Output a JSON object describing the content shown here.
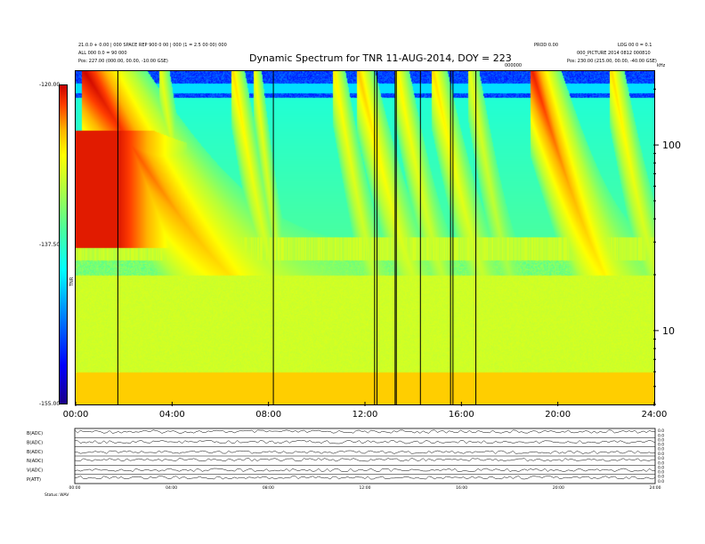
{
  "header": {
    "title": "Dynamic Spectrum for TNR 11-AUG-2014, DOY = 223",
    "left_line1": "21.0.0 + 0.00 | 000 SPACE REP 900 0 00 | 000 (1 = 2.5 00 00) 000",
    "left_line2": "ALL 000 0.0 = 90 000",
    "left_pos_label": "Pos:",
    "left_pos_value": "227.00 (000.00, 00.00, -10.00 GSE)",
    "right_line1a": "PROD 0.00",
    "right_line1b": "LOG 00 0 = 0.1",
    "right_line2": "000_PICTURE 2014 0812 000810",
    "right_pos_label": "Pos:",
    "right_pos_value": "230.00 (215.00, 00.00, -40.00 GSE)",
    "center_small": "000000",
    "right_small": "kHz"
  },
  "colorbar": {
    "top_label": "-120.00",
    "mid_label": "-137.50",
    "bottom_label": "-155.00",
    "side_label": "TNR"
  },
  "chart_data": {
    "type": "heatmap",
    "title": "Dynamic Spectrum for TNR 11-AUG-2014, DOY = 223",
    "xlabel": "",
    "ylabel": "kHz",
    "x_tick_labels": [
      "00:00",
      "04:00",
      "08:00",
      "12:00",
      "16:00",
      "20:00",
      "24:00"
    ],
    "x_range_hours": [
      0,
      24
    ],
    "y_scale": "log",
    "y_range_khz": [
      4,
      250
    ],
    "y_tick_labels": [
      "10",
      "100"
    ],
    "y_ticks_khz": [
      10,
      100
    ],
    "colorbar_range_db": [
      -155.0,
      -120.0
    ],
    "colorbar_ticks_db": [
      -155.0,
      -137.5,
      -120.0
    ],
    "colormap": [
      "#1a0088",
      "#0000ff",
      "#0096ff",
      "#00ffff",
      "#4cff9a",
      "#b4ff3c",
      "#ffff00",
      "#ffb400",
      "#ff3c00",
      "#c80000"
    ],
    "data_gap_lines_hours": [
      1.75,
      8.2,
      12.4,
      12.5,
      13.25,
      13.3,
      14.3,
      15.55,
      15.65,
      16.6
    ],
    "type_iii_bursts": [
      {
        "start_h": 0.3,
        "intensity": 1.0,
        "decay": 3.2
      },
      {
        "start_h": 3.5,
        "intensity": 0.35,
        "decay": 0.8
      },
      {
        "start_h": 6.5,
        "intensity": 0.5,
        "decay": 0.9
      },
      {
        "start_h": 7.4,
        "intensity": 0.4,
        "decay": 0.6
      },
      {
        "start_h": 10.7,
        "intensity": 0.45,
        "decay": 0.9
      },
      {
        "start_h": 11.7,
        "intensity": 0.55,
        "decay": 1.2
      },
      {
        "start_h": 13.3,
        "intensity": 0.45,
        "decay": 1.0
      },
      {
        "start_h": 14.8,
        "intensity": 0.5,
        "decay": 1.1
      },
      {
        "start_h": 16.3,
        "intensity": 0.35,
        "decay": 0.9
      },
      {
        "start_h": 18.9,
        "intensity": 0.9,
        "decay": 1.6
      },
      {
        "start_h": 22.2,
        "intensity": 0.5,
        "decay": 1.0
      }
    ],
    "bottom_panels": [
      {
        "label": "B(ADC)",
        "right_top": "0.0",
        "right_bot": "0.0"
      },
      {
        "label": "B(ADC)",
        "right_top": "0.0",
        "right_bot": "0.0"
      },
      {
        "label": "B(ADC)",
        "right_top": "0.0",
        "right_bot": "0.0"
      },
      {
        "label": "N(ADC)",
        "right_top": "0.0",
        "right_bot": "0.0"
      },
      {
        "label": "V(ADC)",
        "right_top": "0.0",
        "right_bot": "0.0"
      },
      {
        "label": "P(ATT)",
        "right_top": "0.0",
        "right_bot": "0.0"
      }
    ],
    "bottom_x_labels": [
      "00:00",
      "04:00",
      "08:00",
      "12:00",
      "16:00",
      "20:00",
      "24:00"
    ],
    "bottom_footer": "Status: WAV"
  }
}
